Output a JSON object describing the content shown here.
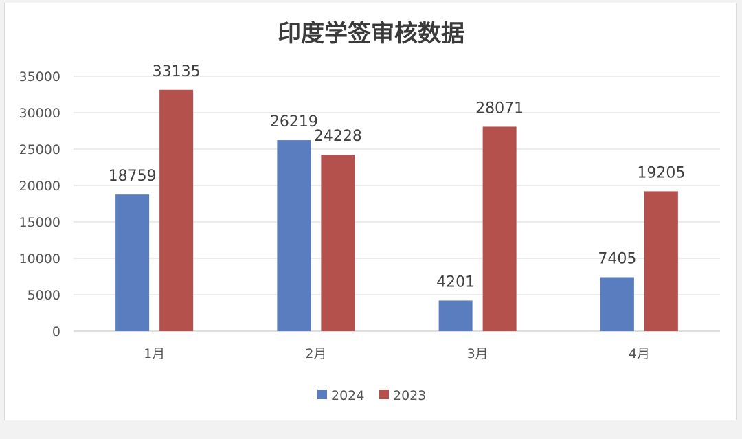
{
  "chart_data": {
    "type": "bar",
    "title": "印度学签审核数据",
    "categories": [
      "1月",
      "2月",
      "3月",
      "4月"
    ],
    "series": [
      {
        "name": "2024",
        "values": [
          18759,
          26219,
          4201,
          7405
        ],
        "color": "#5a7dbf"
      },
      {
        "name": "2023",
        "values": [
          33135,
          24228,
          28071,
          19205
        ],
        "color": "#b5514d"
      }
    ],
    "ylim": [
      0,
      35000
    ],
    "yticks": [
      0,
      5000,
      10000,
      15000,
      20000,
      25000,
      30000,
      35000
    ],
    "grid": true,
    "legend": "bottom",
    "xlabel": "",
    "ylabel": ""
  }
}
